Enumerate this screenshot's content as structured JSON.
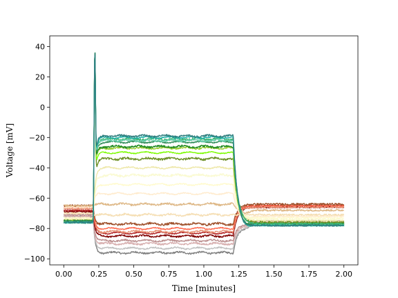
{
  "chart_data": {
    "type": "line",
    "title": "",
    "xlabel": "Time [minutes]",
    "ylabel": "Voltage [mV]",
    "xlim": [
      -0.1,
      2.1
    ],
    "ylim": [
      -104,
      47
    ],
    "xticks": [
      0.0,
      0.25,
      0.5,
      0.75,
      1.0,
      1.25,
      1.5,
      1.75,
      2.0
    ],
    "xtick_labels": [
      "0.00",
      "0.25",
      "0.50",
      "0.75",
      "1.00",
      "1.25",
      "1.50",
      "1.75",
      "2.00"
    ],
    "yticks": [
      -100,
      -80,
      -60,
      -40,
      -20,
      0,
      20,
      40
    ],
    "ytick_labels": [
      "−100",
      "−80",
      "−60",
      "−40",
      "−20",
      "0",
      "20",
      "40"
    ],
    "grid": false,
    "legend": false,
    "stim_onset_min": 0.21,
    "stim_offset_min": 1.21,
    "series": [
      {
        "color": "#808080",
        "rest": -72,
        "stim": -96,
        "recovery": -77,
        "spike": null
      },
      {
        "color": "#c0c0c0",
        "rest": -72,
        "stim": -93,
        "recovery": -77,
        "spike": null
      },
      {
        "color": "#d8b0b0",
        "rest": -72,
        "stim": -90,
        "recovery": -76,
        "spike": null
      },
      {
        "color": "#bc8f8f",
        "rest": -71,
        "stim": -88,
        "recovery": -75,
        "spike": null
      },
      {
        "color": "#800000",
        "rest": -69,
        "stim": -85,
        "recovery": -66,
        "spike": null
      },
      {
        "color": "#b22222",
        "rest": -68,
        "stim": -83,
        "recovery": -65,
        "spike": null
      },
      {
        "color": "#e9967a",
        "rest": -67,
        "stim": -82,
        "recovery": -66,
        "spike": null
      },
      {
        "color": "#ff6347",
        "rest": -66,
        "stim": -80,
        "recovery": -65,
        "spike": null
      },
      {
        "color": "#a0522d",
        "rest": -65,
        "stim": -77,
        "recovery": -64,
        "spike": null
      },
      {
        "color": "#f5deb3",
        "rest": -70,
        "stim": -71,
        "recovery": -71,
        "spike": null
      },
      {
        "color": "#deb887",
        "rest": -65,
        "stim": -64,
        "recovery": -68,
        "spike": null
      },
      {
        "color": "#ffebcd",
        "rest": -66,
        "stim": -57,
        "recovery": -72,
        "spike": null
      },
      {
        "color": "#fffacd",
        "rest": -73,
        "stim": -51,
        "recovery": -73,
        "spike": null
      },
      {
        "color": "#fafad2",
        "rest": -74,
        "stim": -45,
        "recovery": -74,
        "spike": null
      },
      {
        "color": "#eee8aa",
        "rest": -74,
        "stim": -40,
        "recovery": -75,
        "spike": null
      },
      {
        "color": "#6b8e23",
        "rest": -75,
        "stim": -34,
        "recovery": -76,
        "spike": 38
      },
      {
        "color": "#7cfc00",
        "rest": -75,
        "stim": -30,
        "recovery": -77,
        "spike": 40
      },
      {
        "color": "#9acd32",
        "rest": -75,
        "stim": -27,
        "recovery": -77,
        "spike": 39
      },
      {
        "color": "#228b22",
        "rest": -75,
        "stim": -26,
        "recovery": -77,
        "spike": 38
      },
      {
        "color": "#2e8b57",
        "rest": -75,
        "stim": -23,
        "recovery": -77,
        "spike": 39
      },
      {
        "color": "#3cb371",
        "rest": -76,
        "stim": -21,
        "recovery": -77,
        "spike": 38
      },
      {
        "color": "#66cdaa",
        "rest": -76,
        "stim": -22,
        "recovery": -78,
        "spike": 37
      },
      {
        "color": "#20b2aa",
        "rest": -76,
        "stim": -20,
        "recovery": -78,
        "spike": 38
      },
      {
        "color": "#2f7f7f",
        "rest": -76,
        "stim": -19,
        "recovery": -78,
        "spike": 39
      }
    ]
  }
}
